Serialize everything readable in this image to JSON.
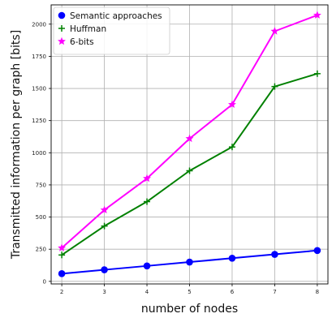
{
  "chart_data": {
    "type": "line",
    "x": [
      2,
      3,
      4,
      5,
      6,
      7,
      8
    ],
    "series": [
      {
        "name": "Semantic approaches",
        "color": "#0000ff",
        "marker": "circle",
        "values": [
          60,
          90,
          120,
          150,
          180,
          210,
          240
        ]
      },
      {
        "name": "Huffman",
        "color": "#008000",
        "marker": "plus",
        "values": [
          205,
          430,
          620,
          860,
          1045,
          1515,
          1615
        ]
      },
      {
        "name": "6-bits",
        "color": "#ff00ff",
        "marker": "star",
        "values": [
          260,
          555,
          800,
          1110,
          1375,
          1945,
          2070
        ]
      }
    ],
    "title": "",
    "xlabel": "number of nodes",
    "ylabel": "Transmitted information per graph [bits]",
    "xlim": [
      1.75,
      8.25
    ],
    "ylim": [
      -20,
      2150
    ],
    "xticks": [
      2,
      3,
      4,
      5,
      6,
      7,
      8
    ],
    "yticks": [
      0,
      250,
      500,
      750,
      1000,
      1250,
      1500,
      1750,
      2000
    ],
    "grid": true,
    "legend_position": "top-left"
  }
}
